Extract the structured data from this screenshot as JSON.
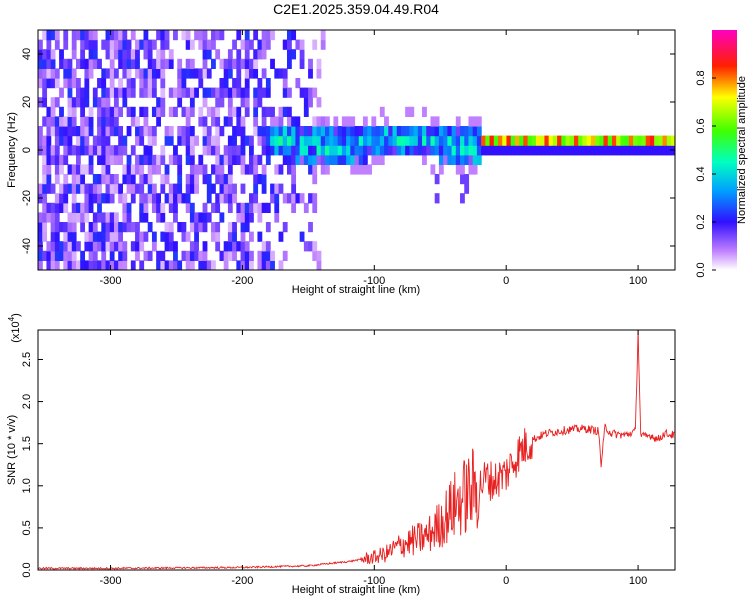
{
  "title": "C2E1.2025.359.04.49.R04",
  "chart_data": [
    {
      "type": "heatmap",
      "xlabel": "Height of straight line (km)",
      "ylabel": "Frequency (Hz)",
      "xlim": [
        -355,
        128
      ],
      "ylim": [
        -50,
        50
      ],
      "xticks": [
        -300,
        -200,
        -100,
        0,
        100
      ],
      "yticks": [
        -40,
        -20,
        0,
        20,
        40
      ],
      "colorbar": {
        "label": "Normalized spectral amplitude",
        "range": [
          0,
          1
        ],
        "ticks": [
          0.0,
          0.2,
          0.4,
          0.6,
          0.8
        ],
        "colormap": [
          "#ffffff",
          "#c040ff",
          "#2020ff",
          "#00ffff",
          "#00ff00",
          "#ffff00",
          "#ff0000",
          "#ff00ff"
        ]
      },
      "regions": [
        {
          "x_from": -355,
          "x_to": -150,
          "description_values": {
            "freq_spread_hz": [
              -50,
              50
            ],
            "amplitude": [
              0.0,
              0.25
            ]
          }
        },
        {
          "x_from": -185,
          "x_to": -20,
          "description_values": {
            "center_hz": 1,
            "half_width_hz": 6,
            "amplitude": [
              0.2,
              0.5
            ]
          }
        },
        {
          "x_from": -20,
          "x_to": 128,
          "description_values": {
            "center_hz": 1,
            "half_width_hz": 2,
            "amplitude": [
              0.6,
              1.0
            ]
          }
        }
      ]
    },
    {
      "type": "line",
      "xlabel": "Height of straight line (km)",
      "ylabel": "SNR (10 * v/v)",
      "yscale_label": "(x10",
      "yscale_exp": "4",
      "xlim": [
        -355,
        128
      ],
      "ylim": [
        0,
        2.85
      ],
      "xticks": [
        -300,
        -200,
        -100,
        0,
        100
      ],
      "yticks": [
        0.0,
        0.5,
        1.0,
        1.5,
        2.0,
        2.5
      ],
      "color": "#e82020",
      "series": [
        {
          "x": [
            -355,
            -300,
            -200,
            -150,
            -120,
            -100,
            -90,
            -80,
            -70,
            -60,
            -50,
            -40,
            -30,
            -20,
            -15,
            -10,
            0,
            10,
            20,
            30,
            40,
            50,
            60,
            70,
            72,
            75,
            80,
            90,
            98,
            100,
            102,
            105,
            110,
            115,
            120,
            128
          ],
          "y": [
            0.02,
            0.02,
            0.03,
            0.05,
            0.1,
            0.15,
            0.2,
            0.3,
            0.35,
            0.4,
            0.55,
            0.75,
            0.9,
            1.0,
            1.1,
            1.05,
            1.15,
            1.4,
            1.55,
            1.62,
            1.65,
            1.67,
            1.68,
            1.65,
            1.25,
            1.7,
            1.62,
            1.6,
            1.65,
            2.85,
            1.6,
            1.58,
            1.6,
            1.55,
            1.62,
            1.6
          ]
        }
      ]
    }
  ]
}
